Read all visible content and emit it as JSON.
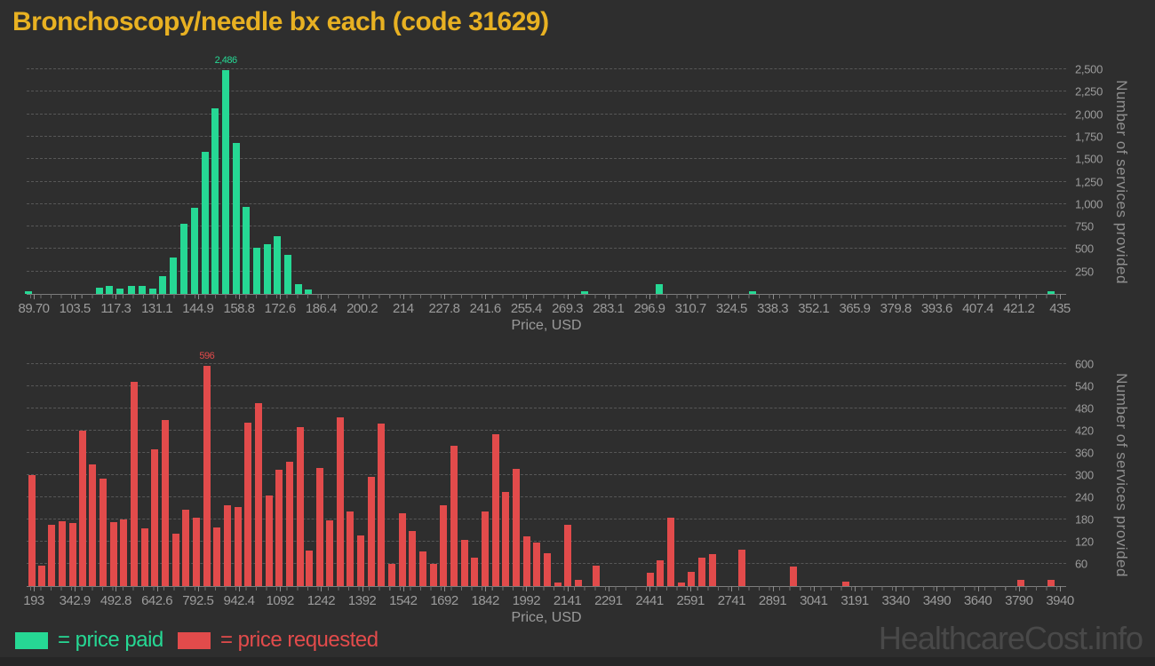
{
  "header": {
    "title": "Bronchoscopy/needle bx each (code 31629)"
  },
  "watermark": "HealthcareCost.info",
  "colors": {
    "background": "#2e2e2e",
    "title": "#e8b122",
    "axis_text": "#9b9b9b",
    "gridline": "#575757",
    "paid": "#26d894",
    "requested": "#e24b4b",
    "watermark": "#494949"
  },
  "legend": {
    "items": [
      {
        "label": "= price paid",
        "series": "price paid",
        "color": "#26d894"
      },
      {
        "label": "= price requested",
        "series": "price requested",
        "color": "#e24b4b"
      }
    ]
  },
  "chart_data": [
    {
      "type": "bar",
      "series_name": "price paid",
      "color": "#26d894",
      "xlabel": "Price, USD",
      "ylabel": "Number of services provided",
      "xlim": [
        89.7,
        435
      ],
      "ylim": [
        0,
        2500
      ],
      "grid": true,
      "legend_position": "bottom-left",
      "peak_label": "2,486",
      "xticks": [
        "89.70",
        "103.5",
        "117.3",
        "131.1",
        "144.9",
        "158.8",
        "172.6",
        "186.4",
        "200.2",
        "214",
        "227.8",
        "241.6",
        "255.4",
        "269.3",
        "283.1",
        "296.9",
        "310.7",
        "324.5",
        "338.3",
        "352.1",
        "365.9",
        "379.8",
        "393.6",
        "407.4",
        "421.2",
        "435"
      ],
      "yticks": [
        "250",
        "500",
        "750",
        "1,000",
        "1,250",
        "1,500",
        "1,750",
        "2,000",
        "2,250",
        "2,500"
      ],
      "points": [
        {
          "x": 88.0,
          "y": 33
        },
        {
          "x": 111.7,
          "y": 67
        },
        {
          "x": 115.2,
          "y": 93
        },
        {
          "x": 118.7,
          "y": 60
        },
        {
          "x": 122.7,
          "y": 93
        },
        {
          "x": 126.2,
          "y": 93
        },
        {
          "x": 129.7,
          "y": 60
        },
        {
          "x": 133.1,
          "y": 193
        },
        {
          "x": 136.6,
          "y": 410
        },
        {
          "x": 140.1,
          "y": 780
        },
        {
          "x": 143.8,
          "y": 960
        },
        {
          "x": 147.3,
          "y": 1580
        },
        {
          "x": 150.8,
          "y": 2070
        },
        {
          "x": 154.3,
          "y": 2486
        },
        {
          "x": 157.8,
          "y": 1680
        },
        {
          "x": 161.2,
          "y": 965
        },
        {
          "x": 164.7,
          "y": 515
        },
        {
          "x": 168.2,
          "y": 550
        },
        {
          "x": 171.7,
          "y": 640
        },
        {
          "x": 175.2,
          "y": 430
        },
        {
          "x": 178.7,
          "y": 107
        },
        {
          "x": 182.2,
          "y": 50
        },
        {
          "x": 275.1,
          "y": 33
        },
        {
          "x": 300.2,
          "y": 107
        },
        {
          "x": 331.6,
          "y": 27
        },
        {
          "x": 432.0,
          "y": 27
        }
      ]
    },
    {
      "type": "bar",
      "series_name": "price requested",
      "color": "#e24b4b",
      "xlabel": "Price, USD",
      "ylabel": "Number of services provided",
      "xlim": [
        193,
        3940
      ],
      "ylim": [
        0,
        600
      ],
      "grid": true,
      "legend_position": "bottom-left",
      "peak_label": "596",
      "xticks": [
        "193",
        "342.9",
        "492.8",
        "642.6",
        "792.5",
        "942.4",
        "1092",
        "1242",
        "1392",
        "1542",
        "1692",
        "1842",
        "1992",
        "2141",
        "2291",
        "2441",
        "2591",
        "2741",
        "2891",
        "3041",
        "3191",
        "3340",
        "3490",
        "3640",
        "3790",
        "3940"
      ],
      "yticks": [
        "60",
        "120",
        "180",
        "240",
        "300",
        "360",
        "420",
        "480",
        "540",
        "600"
      ],
      "points": [
        {
          "x": 185,
          "y": 300
        },
        {
          "x": 221,
          "y": 55
        },
        {
          "x": 259,
          "y": 165
        },
        {
          "x": 297,
          "y": 175
        },
        {
          "x": 335,
          "y": 170
        },
        {
          "x": 370,
          "y": 420
        },
        {
          "x": 408,
          "y": 330
        },
        {
          "x": 446,
          "y": 290
        },
        {
          "x": 484,
          "y": 174
        },
        {
          "x": 522,
          "y": 180
        },
        {
          "x": 560,
          "y": 553
        },
        {
          "x": 597,
          "y": 155
        },
        {
          "x": 635,
          "y": 370
        },
        {
          "x": 673,
          "y": 450
        },
        {
          "x": 711,
          "y": 142
        },
        {
          "x": 749,
          "y": 206
        },
        {
          "x": 787,
          "y": 186
        },
        {
          "x": 825,
          "y": 596
        },
        {
          "x": 862,
          "y": 158
        },
        {
          "x": 900,
          "y": 218
        },
        {
          "x": 938,
          "y": 214
        },
        {
          "x": 976,
          "y": 442
        },
        {
          "x": 1014,
          "y": 494
        },
        {
          "x": 1052,
          "y": 244
        },
        {
          "x": 1089,
          "y": 314
        },
        {
          "x": 1127,
          "y": 336
        },
        {
          "x": 1165,
          "y": 430
        },
        {
          "x": 1200,
          "y": 95
        },
        {
          "x": 1238,
          "y": 320
        },
        {
          "x": 1272,
          "y": 178
        },
        {
          "x": 1311,
          "y": 455
        },
        {
          "x": 1348,
          "y": 202
        },
        {
          "x": 1387,
          "y": 138
        },
        {
          "x": 1425,
          "y": 295
        },
        {
          "x": 1462,
          "y": 440
        },
        {
          "x": 1500,
          "y": 60
        },
        {
          "x": 1538,
          "y": 198
        },
        {
          "x": 1576,
          "y": 148
        },
        {
          "x": 1614,
          "y": 94
        },
        {
          "x": 1652,
          "y": 60
        },
        {
          "x": 1690,
          "y": 218
        },
        {
          "x": 1728,
          "y": 380
        },
        {
          "x": 1766,
          "y": 124
        },
        {
          "x": 1803,
          "y": 76
        },
        {
          "x": 1841,
          "y": 202
        },
        {
          "x": 1879,
          "y": 410
        },
        {
          "x": 1917,
          "y": 254
        },
        {
          "x": 1955,
          "y": 316
        },
        {
          "x": 1993,
          "y": 134
        },
        {
          "x": 2030,
          "y": 118
        },
        {
          "x": 2068,
          "y": 90
        },
        {
          "x": 2106,
          "y": 10
        },
        {
          "x": 2144,
          "y": 166
        },
        {
          "x": 2181,
          "y": 18
        },
        {
          "x": 2248,
          "y": 56
        },
        {
          "x": 2444,
          "y": 35
        },
        {
          "x": 2481,
          "y": 70
        },
        {
          "x": 2519,
          "y": 186
        },
        {
          "x": 2557,
          "y": 10
        },
        {
          "x": 2595,
          "y": 38
        },
        {
          "x": 2633,
          "y": 78
        },
        {
          "x": 2671,
          "y": 86
        },
        {
          "x": 2779,
          "y": 98
        },
        {
          "x": 2966,
          "y": 54
        },
        {
          "x": 3157,
          "y": 13
        },
        {
          "x": 3797,
          "y": 18
        },
        {
          "x": 3908,
          "y": 18
        }
      ]
    }
  ]
}
